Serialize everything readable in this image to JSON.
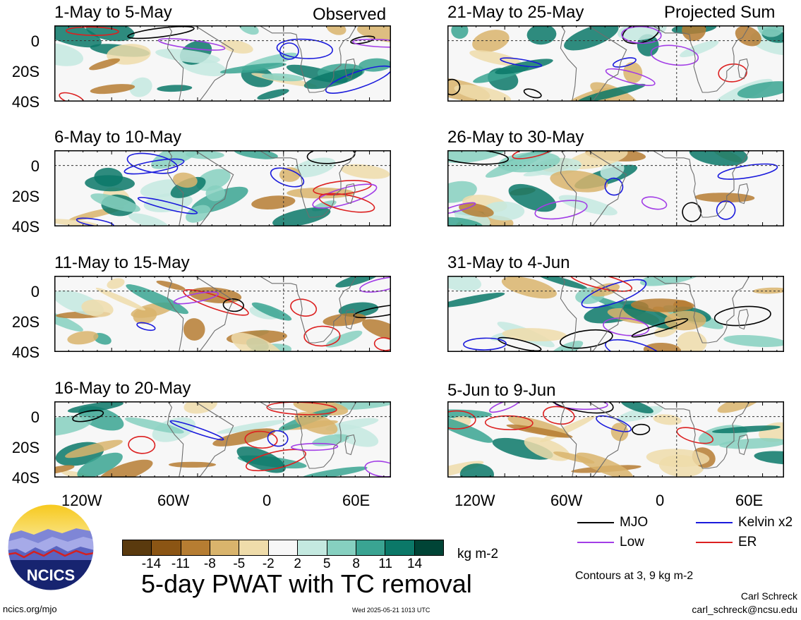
{
  "header": {
    "left_label": "Observed",
    "right_label": "Projected Sum"
  },
  "panels": [
    {
      "title": "1-May to 5-May"
    },
    {
      "title": "6-May to 10-May"
    },
    {
      "title": "11-May to 15-May"
    },
    {
      "title": "16-May to 20-May"
    },
    {
      "title": "21-May to 25-May"
    },
    {
      "title": "26-May to 30-May"
    },
    {
      "title": "31-May to 4-Jun"
    },
    {
      "title": "5-Jun to 9-Jun"
    }
  ],
  "axes": {
    "y_ticks": [
      "0",
      "20S",
      "40S"
    ],
    "x_ticks": [
      "120W",
      "60W",
      "0",
      "60E"
    ]
  },
  "legend": {
    "items": [
      {
        "label": "MJO",
        "color": "#000000"
      },
      {
        "label": "Kelvin x2",
        "color": "#1a1adc"
      },
      {
        "label": "Low",
        "color": "#a23de6"
      },
      {
        "label": "ER",
        "color": "#dc2020"
      }
    ],
    "contour_note": "Contours at 3, 9 kg m-2"
  },
  "colorbar": {
    "colors": [
      "#5a3a0e",
      "#8b5514",
      "#b67d32",
      "#d9b46c",
      "#efdcaa",
      "#f7f7f7",
      "#c4e9e0",
      "#86d0c0",
      "#3aa492",
      "#0b7868",
      "#004436"
    ],
    "labels": [
      "-14",
      "-11",
      "-8",
      "-5",
      "-2",
      "2",
      "5",
      "8",
      "11",
      "14"
    ],
    "units": "kg m-2"
  },
  "main_title": "5-day PWAT with TC removal",
  "logo_text": "NCICS",
  "footer": {
    "left": "ncics.org/mjo",
    "center": "Wed 2025-05-21 1013 UTC",
    "right_name": "Carl Schreck",
    "right_email": "carl_schreck@ncsu.edu"
  }
}
